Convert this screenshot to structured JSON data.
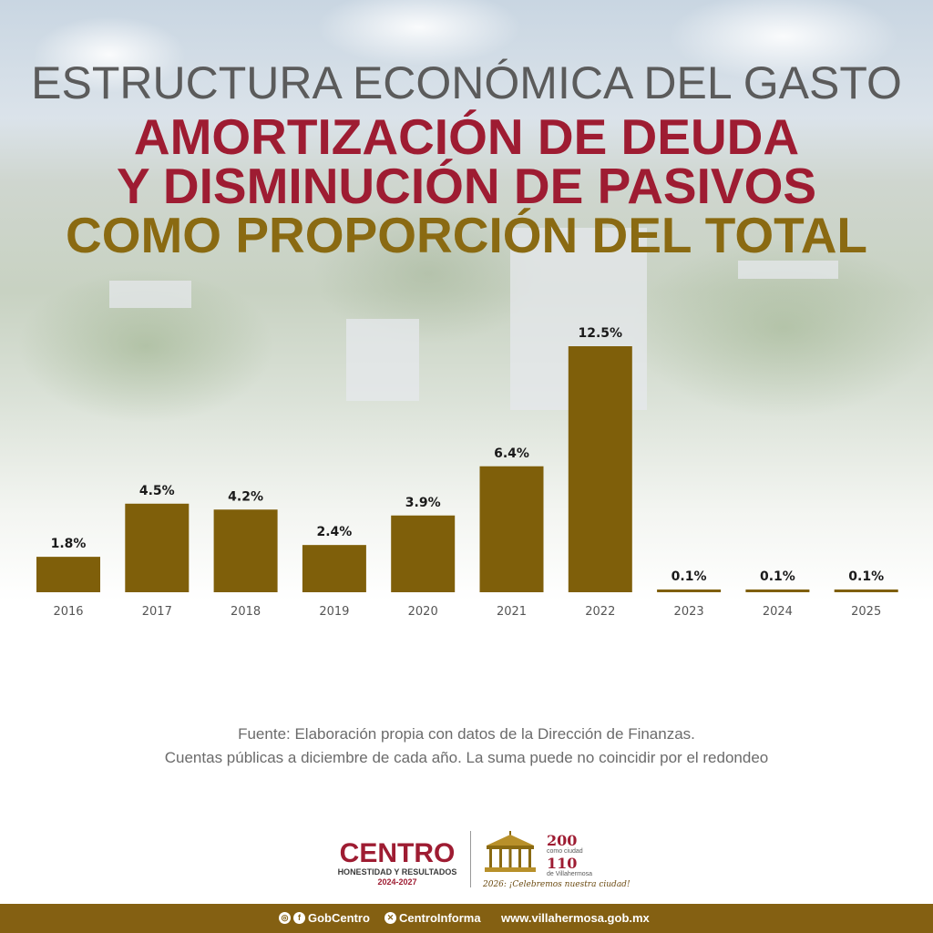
{
  "header": {
    "line1": "ESTRUCTURA ECONÓMICA DEL GASTO",
    "line2": "AMORTIZACIÓN DE DEUDA",
    "line3": "Y DISMINUCIÓN DE PASIVOS",
    "line4": "COMO PROPORCIÓN DEL TOTAL"
  },
  "chart_data": {
    "type": "bar",
    "categories": [
      "2016",
      "2017",
      "2018",
      "2019",
      "2020",
      "2021",
      "2022",
      "2023",
      "2024",
      "2025"
    ],
    "values": [
      1.8,
      4.5,
      4.2,
      2.4,
      3.9,
      6.4,
      12.5,
      0.1,
      0.1,
      0.1
    ],
    "value_labels": [
      "1.8%",
      "4.5%",
      "4.2%",
      "2.4%",
      "3.9%",
      "6.4%",
      "12.5%",
      "0.1%",
      "0.1%",
      "0.1%"
    ],
    "title": "",
    "xlabel": "",
    "ylabel": "",
    "ylim": [
      0,
      12.5
    ],
    "grid": false,
    "bar_color": "#7f5f0a"
  },
  "footnote": {
    "line1": "Fuente: Elaboración propia con datos de la Dirección de Finanzas.",
    "line2": "Cuentas públicas a diciembre de cada año. La suma puede no coincidir por el redondeo"
  },
  "logos": {
    "centro_name": "CENTRO",
    "centro_tagline": "HONESTIDAD Y RESULTADOS",
    "centro_years": "2024-2027",
    "anniv_200": "200",
    "anniv_como_ciudad": "como ciudad",
    "anniv_110": "110",
    "anniv_de_villahermosa": "de Villahermosa",
    "anniv_slogan": "2026: ¡Celebremos nuestra ciudad!"
  },
  "footer": {
    "facebook_handle": "GobCentro",
    "x_handle": "CentroInforma",
    "website": "www.villahermosa.gob.mx",
    "icons": [
      "instagram-icon",
      "facebook-icon",
      "x-icon"
    ]
  },
  "colors": {
    "title_gray": "#5b5b5b",
    "accent_red": "#9e1c32",
    "accent_gold": "#8a6a12",
    "bar": "#7f5f0a",
    "footer_bar": "#846012"
  }
}
